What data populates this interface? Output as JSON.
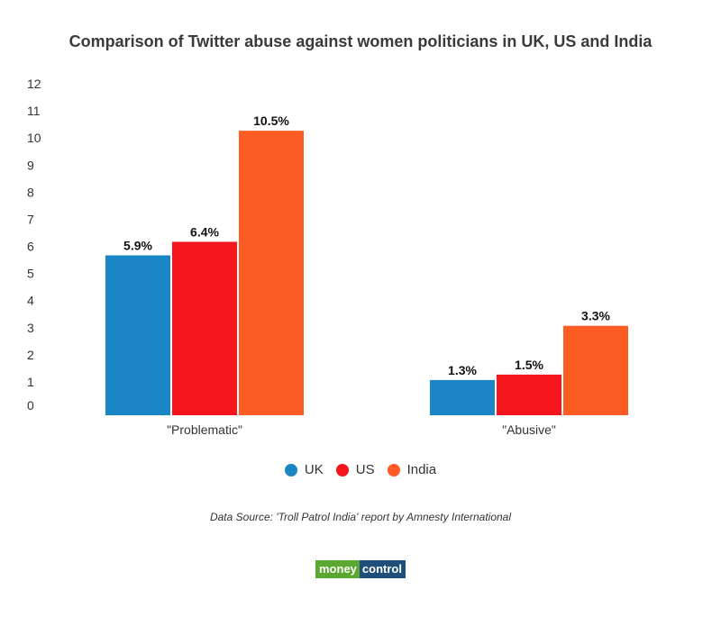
{
  "title": "Comparison of Twitter abuse against women politicians in UK, US and India",
  "source": "Data Source: 'Troll Patrol India' report by Amnesty International",
  "logo": {
    "left": "money",
    "right": "control"
  },
  "legend": [
    {
      "label": "UK",
      "color": "#1a86c5"
    },
    {
      "label": "US",
      "color": "#f4151d"
    },
    {
      "label": "India",
      "color": "#fd5c25"
    }
  ],
  "chart_data": {
    "type": "bar",
    "categories": [
      "\"Problematic\"",
      "\"Abusive\""
    ],
    "series": [
      {
        "name": "UK",
        "color": "#1a86c5",
        "values": [
          5.9,
          1.3
        ],
        "labels": [
          "5.9%",
          "1.3%"
        ]
      },
      {
        "name": "US",
        "color": "#f4151d",
        "values": [
          6.4,
          1.5
        ],
        "labels": [
          "6.4%",
          "1.5%"
        ]
      },
      {
        "name": "India",
        "color": "#fd5c25",
        "values": [
          10.5,
          3.3
        ],
        "labels": [
          "10.5%",
          "3.3%"
        ]
      }
    ],
    "yticks": [
      "0",
      "1",
      "2",
      "3",
      "4",
      "5",
      "6",
      "7",
      "8",
      "9",
      "10",
      "11",
      "12"
    ],
    "ylim": [
      0,
      12
    ],
    "grid": false,
    "legend_position": "bottom"
  }
}
